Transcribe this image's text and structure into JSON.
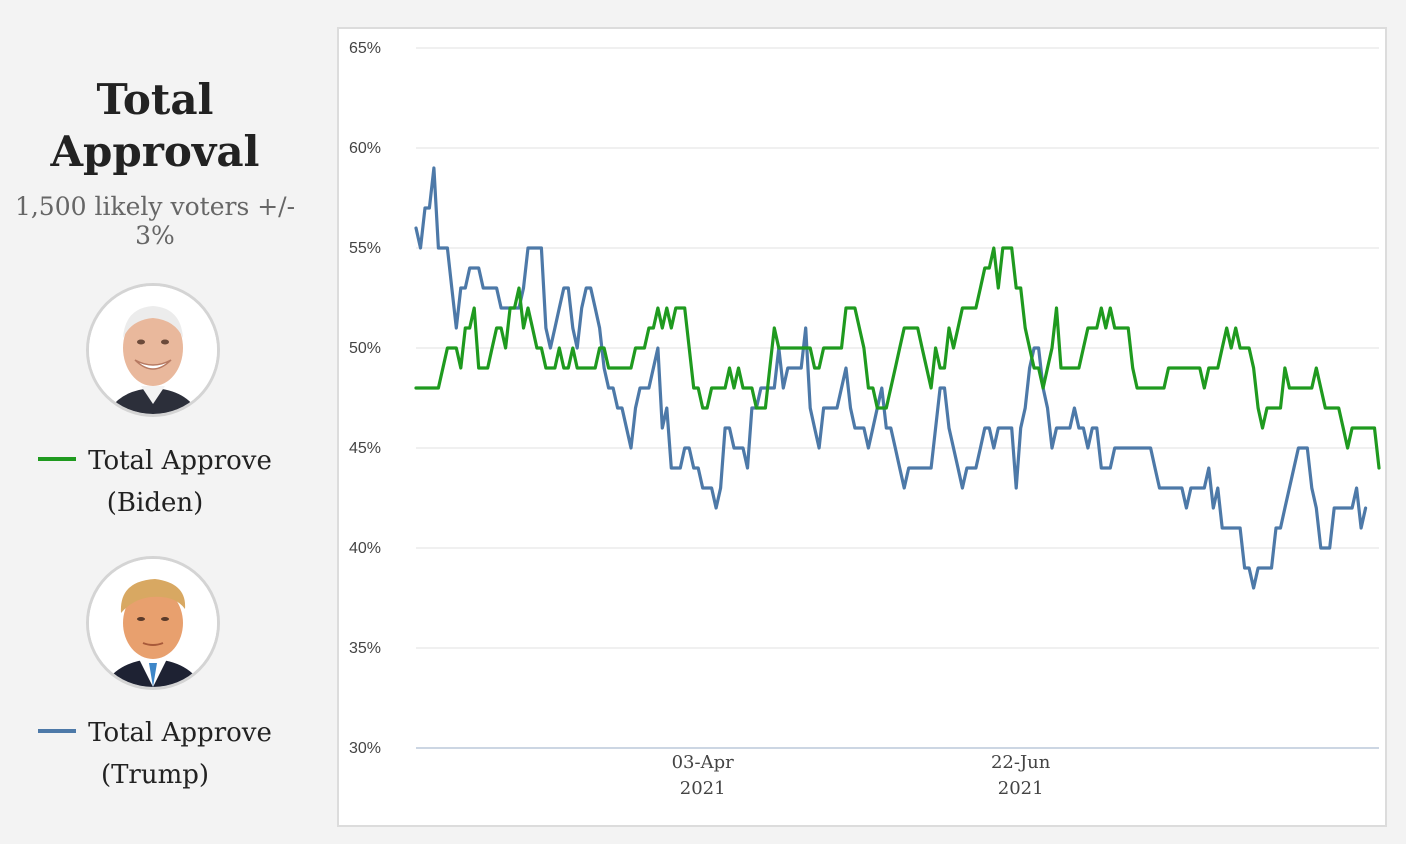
{
  "sidebar": {
    "title_line1": "Total",
    "title_line2": "Approval",
    "subtitle_line1": "1,500 likely voters +/-",
    "subtitle_line2": "3%",
    "biden": {
      "portrait_icon": "biden-portrait",
      "legend_line1": "Total Approve",
      "legend_line2": "(Biden)",
      "color": "#1f9a1f"
    },
    "trump": {
      "portrait_icon": "trump-portrait",
      "legend_line1": "Total Approve",
      "legend_line2": "(Trump)",
      "color": "#4d79a8"
    }
  },
  "chart_data": {
    "type": "line",
    "title": "Total Approval",
    "xlabel": "",
    "ylabel": "",
    "ylim": [
      30,
      65
    ],
    "ytick_labels": [
      "30%",
      "35%",
      "40%",
      "45%",
      "50%",
      "55%",
      "60%",
      "65%"
    ],
    "xtick_labels": [
      {
        "index": 64,
        "line1": "03-Apr",
        "line2": "2021"
      },
      {
        "index": 135,
        "line1": "22-Jun",
        "line2": "2021"
      }
    ],
    "grid": true,
    "series": [
      {
        "name": "Total Approve (Biden)",
        "color": "#1f9a1f",
        "values": [
          48,
          48,
          48,
          48,
          48,
          48,
          49,
          50,
          50,
          50,
          49,
          51,
          51,
          52,
          49,
          49,
          49,
          50,
          51,
          51,
          50,
          52,
          52,
          53,
          51,
          52,
          51,
          50,
          50,
          49,
          49,
          49,
          50,
          49,
          49,
          50,
          49,
          49,
          49,
          49,
          49,
          50,
          50,
          49,
          49,
          49,
          49,
          49,
          49,
          50,
          50,
          50,
          51,
          51,
          52,
          51,
          52,
          51,
          52,
          52,
          52,
          50,
          48,
          48,
          47,
          47,
          48,
          48,
          48,
          48,
          49,
          48,
          49,
          48,
          48,
          48,
          47,
          47,
          47,
          49,
          51,
          50,
          50,
          50,
          50,
          50,
          50,
          50,
          50,
          49,
          49,
          50,
          50,
          50,
          50,
          50,
          52,
          52,
          52,
          51,
          50,
          48,
          48,
          47,
          47,
          47,
          48,
          49,
          50,
          51,
          51,
          51,
          51,
          50,
          49,
          48,
          50,
          49,
          49,
          51,
          50,
          51,
          52,
          52,
          52,
          52,
          53,
          54,
          54,
          55,
          53,
          55,
          55,
          55,
          53,
          53,
          51,
          50,
          49,
          49,
          48,
          49,
          50,
          52,
          49,
          49,
          49,
          49,
          49,
          50,
          51,
          51,
          51,
          52,
          51,
          52,
          51,
          51,
          51,
          51,
          49,
          48,
          48,
          48,
          48,
          48,
          48,
          48,
          49,
          49,
          49,
          49,
          49,
          49,
          49,
          49,
          48,
          49,
          49,
          49,
          50,
          51,
          50,
          51,
          50,
          50,
          50,
          49,
          47,
          46,
          47,
          47,
          47,
          47,
          49,
          48,
          48,
          48,
          48,
          48,
          48,
          49,
          48,
          47,
          47,
          47,
          47,
          46,
          45,
          46,
          46,
          46,
          46,
          46,
          46,
          44
        ]
      },
      {
        "name": "Total Approve (Trump)",
        "color": "#4d79a8",
        "values": [
          56,
          55,
          57,
          57,
          59,
          55,
          55,
          55,
          53,
          51,
          53,
          53,
          54,
          54,
          54,
          53,
          53,
          53,
          53,
          52,
          52,
          52,
          52,
          52,
          53,
          55,
          55,
          55,
          55,
          51,
          50,
          51,
          52,
          53,
          53,
          51,
          50,
          52,
          53,
          53,
          52,
          51,
          49,
          48,
          48,
          47,
          47,
          46,
          45,
          47,
          48,
          48,
          48,
          49,
          50,
          46,
          47,
          44,
          44,
          44,
          45,
          45,
          44,
          44,
          43,
          43,
          43,
          42,
          43,
          46,
          46,
          45,
          45,
          45,
          44,
          47,
          47,
          48,
          48,
          48,
          48,
          50,
          48,
          49,
          49,
          49,
          49,
          51,
          47,
          46,
          45,
          47,
          47,
          47,
          47,
          48,
          49,
          47,
          46,
          46,
          46,
          45,
          46,
          47,
          48,
          46,
          46,
          45,
          44,
          43,
          44,
          44,
          44,
          44,
          44,
          44,
          46,
          48,
          48,
          46,
          45,
          44,
          43,
          44,
          44,
          44,
          45,
          46,
          46,
          45,
          46,
          46,
          46,
          46,
          43,
          46,
          47,
          49,
          50,
          50,
          48,
          47,
          45,
          46,
          46,
          46,
          46,
          47,
          46,
          46,
          45,
          46,
          46,
          44,
          44,
          44,
          45,
          45,
          45,
          45,
          45,
          45,
          45,
          45,
          45,
          44,
          43,
          43,
          43,
          43,
          43,
          43,
          42,
          43,
          43,
          43,
          43,
          44,
          42,
          43,
          41,
          41,
          41,
          41,
          41,
          39,
          39,
          38,
          39,
          39,
          39,
          39,
          41,
          41,
          42,
          43,
          44,
          45,
          45,
          45,
          43,
          42,
          40,
          40,
          40,
          42,
          42,
          42,
          42,
          42,
          43,
          41,
          42
        ]
      }
    ]
  }
}
